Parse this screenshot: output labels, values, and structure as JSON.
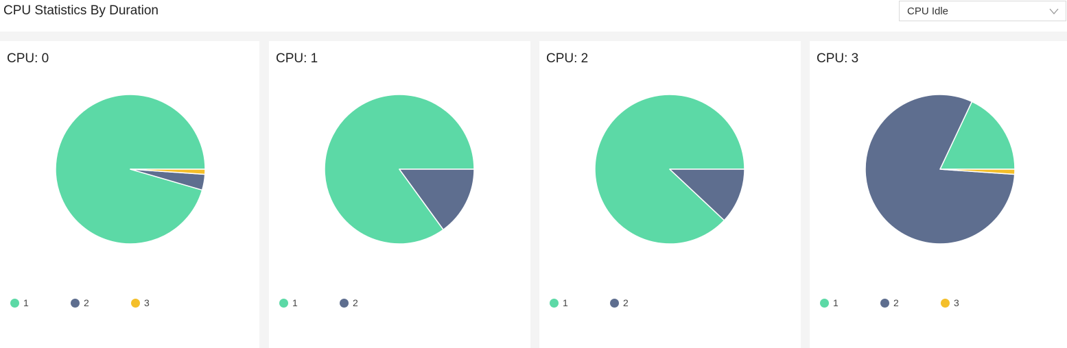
{
  "header": {
    "title": "CPU Statistics By Duration",
    "select_value": "CPU Idle"
  },
  "colors": {
    "1": "#5cd9a6",
    "2": "#5e6e8f",
    "3": "#f4bf2a"
  },
  "chart_data": [
    {
      "type": "pie",
      "title": "CPU: 0",
      "series": [
        {
          "name": "1",
          "value": 95.5
        },
        {
          "name": "2",
          "value": 3.4
        },
        {
          "name": "3",
          "value": 1.1
        }
      ]
    },
    {
      "type": "pie",
      "title": "CPU: 1",
      "series": [
        {
          "name": "1",
          "value": 85
        },
        {
          "name": "2",
          "value": 15
        }
      ]
    },
    {
      "type": "pie",
      "title": "CPU: 2",
      "series": [
        {
          "name": "1",
          "value": 88
        },
        {
          "name": "2",
          "value": 12
        }
      ]
    },
    {
      "type": "pie",
      "title": "CPU: 3",
      "series": [
        {
          "name": "1",
          "value": 18
        },
        {
          "name": "2",
          "value": 80.9
        },
        {
          "name": "3",
          "value": 1.1
        }
      ]
    }
  ]
}
